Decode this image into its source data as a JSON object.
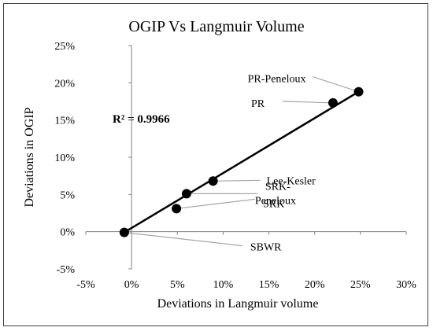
{
  "chart_data": {
    "type": "scatter",
    "title": "OGIP Vs Langmuir Volume",
    "xlabel": "Deviations in Langmuir volume",
    "ylabel": "Deviations in OGIP",
    "xlim": [
      -5,
      30
    ],
    "ylim": [
      -5,
      25
    ],
    "x_ticks": [
      "-5%",
      "0%",
      "5%",
      "10%",
      "15%",
      "20%",
      "25%",
      "30%"
    ],
    "y_ticks": [
      "-5%",
      "0%",
      "5%",
      "10%",
      "15%",
      "20%",
      "25%"
    ],
    "grid": false,
    "legend": "none",
    "annotation": "R² = 0.9966",
    "trendline": {
      "type": "linear",
      "from": [
        -0.8,
        -0.1
      ],
      "to": [
        24.8,
        18.8
      ]
    },
    "points": [
      {
        "name": "SBWR",
        "x": -0.8,
        "y": -0.1
      },
      {
        "name": "SRK",
        "x": 4.9,
        "y": 3.1
      },
      {
        "name": "SRK-Peneloux",
        "x": 6.0,
        "y": 5.1
      },
      {
        "name": "Lee-Kesler",
        "x": 8.9,
        "y": 6.8
      },
      {
        "name": "PR",
        "x": 22.0,
        "y": 17.3
      },
      {
        "name": "PR-Peneloux",
        "x": 24.8,
        "y": 18.8
      }
    ],
    "colors": {
      "marker": "#000000",
      "trendline": "#000000",
      "leader": "#a6a6a6",
      "axis": "#808080"
    }
  }
}
